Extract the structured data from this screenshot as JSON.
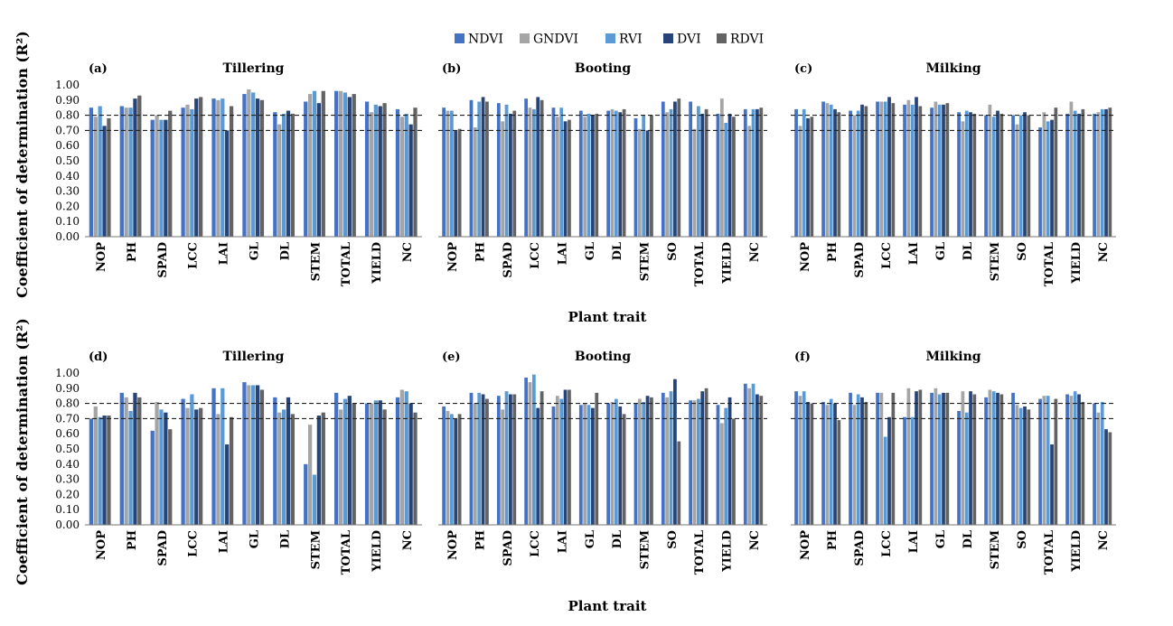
{
  "figure": {
    "ylabel": "Coefficient of determination (R²)",
    "xlabel": "Plant trait"
  },
  "colors": {
    "NDVI": "#4472c4",
    "GNDVI": "#a5a5a5",
    "RVI": "#5b9bd5",
    "DVI": "#264478",
    "RDVI": "#636363"
  },
  "chart_data": [
    {
      "type": "bar",
      "label": "(a)",
      "title": "Tillering",
      "categories": [
        "NOP",
        "PH",
        "SPAD",
        "LCC",
        "LAI",
        "GL",
        "DL",
        "STEM",
        "TOTAL",
        "YIELD",
        "NC"
      ],
      "ylim": [
        0,
        1.0
      ],
      "yticks": [
        "0.00",
        "0.10",
        "0.20",
        "0.30",
        "0.40",
        "0.50",
        "0.60",
        "0.70",
        "0.80",
        "0.90",
        "1.00"
      ],
      "reference_lines": [
        0.7,
        0.8
      ],
      "series": [
        {
          "name": "NDVI",
          "values": [
            0.85,
            0.86,
            0.77,
            0.85,
            0.91,
            0.94,
            0.82,
            0.89,
            0.96,
            0.89,
            0.84
          ]
        },
        {
          "name": "GNDVI",
          "values": [
            0.79,
            0.85,
            0.8,
            0.87,
            0.9,
            0.97,
            0.74,
            0.94,
            0.96,
            0.82,
            0.79
          ]
        },
        {
          "name": "RVI",
          "values": [
            0.86,
            0.85,
            0.77,
            0.84,
            0.91,
            0.95,
            0.81,
            0.96,
            0.95,
            0.87,
            0.81
          ]
        },
        {
          "name": "DVI",
          "values": [
            0.73,
            0.91,
            0.77,
            0.91,
            0.7,
            0.91,
            0.83,
            0.88,
            0.92,
            0.86,
            0.74
          ]
        },
        {
          "name": "RDVI",
          "values": [
            0.78,
            0.93,
            0.83,
            0.92,
            0.86,
            0.9,
            0.81,
            0.96,
            0.94,
            0.88,
            0.85
          ]
        }
      ]
    },
    {
      "type": "bar",
      "label": "(b)",
      "title": "Booting",
      "categories": [
        "NOP",
        "PH",
        "SPAD",
        "LCC",
        "LAI",
        "GL",
        "DL",
        "STEM",
        "SO",
        "TOTAL",
        "YIELD",
        "NC"
      ],
      "ylim": [
        0,
        1.0
      ],
      "yticks": [],
      "reference_lines": [
        0.7,
        0.8
      ],
      "series": [
        {
          "name": "NDVI",
          "values": [
            0.85,
            0.9,
            0.88,
            0.91,
            0.85,
            0.83,
            0.83,
            0.78,
            0.89,
            0.89,
            0.81,
            0.84
          ]
        },
        {
          "name": "GNDVI",
          "values": [
            0.83,
            0.72,
            0.76,
            0.85,
            0.79,
            0.79,
            0.84,
            0.71,
            0.82,
            0.71,
            0.91,
            0.73
          ]
        },
        {
          "name": "RVI",
          "values": [
            0.83,
            0.89,
            0.87,
            0.84,
            0.85,
            0.81,
            0.83,
            0.8,
            0.84,
            0.86,
            0.75,
            0.84
          ]
        },
        {
          "name": "DVI",
          "values": [
            0.7,
            0.92,
            0.81,
            0.92,
            0.76,
            0.8,
            0.82,
            0.7,
            0.89,
            0.81,
            0.81,
            0.84
          ]
        },
        {
          "name": "RDVI",
          "values": [
            0.71,
            0.89,
            0.83,
            0.9,
            0.77,
            0.81,
            0.84,
            0.8,
            0.91,
            0.84,
            0.79,
            0.85
          ]
        }
      ]
    },
    {
      "type": "bar",
      "label": "(c)",
      "title": "Milking",
      "categories": [
        "NOP",
        "PH",
        "SPAD",
        "LCC",
        "LAI",
        "GL",
        "DL",
        "STEM",
        "SO",
        "TOTAL",
        "YIELD",
        "NC"
      ],
      "ylim": [
        0,
        1.0
      ],
      "yticks": [],
      "reference_lines": [
        0.7,
        0.8
      ],
      "series": [
        {
          "name": "NDVI",
          "values": [
            0.84,
            0.89,
            0.83,
            0.89,
            0.87,
            0.85,
            0.82,
            0.8,
            0.8,
            0.72,
            0.81,
            0.81
          ]
        },
        {
          "name": "GNDVI",
          "values": [
            0.73,
            0.88,
            0.8,
            0.89,
            0.9,
            0.89,
            0.76,
            0.87,
            0.74,
            0.82,
            0.89,
            0.82
          ]
        },
        {
          "name": "RVI",
          "values": [
            0.84,
            0.87,
            0.83,
            0.89,
            0.87,
            0.87,
            0.83,
            0.79,
            0.8,
            0.76,
            0.83,
            0.84
          ]
        },
        {
          "name": "DVI",
          "values": [
            0.78,
            0.84,
            0.87,
            0.92,
            0.92,
            0.87,
            0.82,
            0.83,
            0.82,
            0.77,
            0.81,
            0.84
          ]
        },
        {
          "name": "RDVI",
          "values": [
            0.79,
            0.82,
            0.86,
            0.88,
            0.86,
            0.88,
            0.81,
            0.81,
            0.8,
            0.85,
            0.84,
            0.85
          ]
        }
      ]
    },
    {
      "type": "bar",
      "label": "(d)",
      "title": "Tillering",
      "categories": [
        "NOP",
        "PH",
        "SPAD",
        "LCC",
        "LAI",
        "GL",
        "DL",
        "STEM",
        "TOTAL",
        "YIELD",
        "NC"
      ],
      "ylim": [
        0,
        1.0
      ],
      "yticks": [
        "0.00",
        "0.10",
        "0.20",
        "0.30",
        "0.40",
        "0.50",
        "0.60",
        "0.70",
        "0.80",
        "0.90",
        "1.00"
      ],
      "reference_lines": [
        0.7,
        0.8
      ],
      "series": [
        {
          "name": "NDVI",
          "values": [
            0.7,
            0.87,
            0.62,
            0.83,
            0.9,
            0.94,
            0.84,
            0.4,
            0.87,
            0.8,
            0.84
          ]
        },
        {
          "name": "GNDVI",
          "values": [
            0.78,
            0.84,
            0.81,
            0.77,
            0.73,
            0.92,
            0.74,
            0.66,
            0.76,
            0.8,
            0.89
          ]
        },
        {
          "name": "RVI",
          "values": [
            0.71,
            0.75,
            0.76,
            0.86,
            0.9,
            0.92,
            0.76,
            0.33,
            0.83,
            0.82,
            0.88
          ]
        },
        {
          "name": "DVI",
          "values": [
            0.72,
            0.87,
            0.74,
            0.76,
            0.53,
            0.92,
            0.84,
            0.72,
            0.85,
            0.82,
            0.8
          ]
        },
        {
          "name": "RDVI",
          "values": [
            0.72,
            0.84,
            0.63,
            0.77,
            0.71,
            0.89,
            0.73,
            0.74,
            0.8,
            0.76,
            0.74
          ]
        }
      ]
    },
    {
      "type": "bar",
      "label": "(e)",
      "title": "Booting",
      "categories": [
        "NOP",
        "PH",
        "SPAD",
        "LCC",
        "LAI",
        "GL",
        "DL",
        "STEM",
        "SO",
        "TOTAL",
        "YIELD",
        "NC"
      ],
      "ylim": [
        0,
        1.0
      ],
      "yticks": [],
      "reference_lines": [
        0.7,
        0.8
      ],
      "series": [
        {
          "name": "NDVI",
          "values": [
            0.78,
            0.87,
            0.85,
            0.97,
            0.78,
            0.79,
            0.8,
            0.8,
            0.87,
            0.82,
            0.79,
            0.93
          ]
        },
        {
          "name": "GNDVI",
          "values": [
            0.75,
            0.8,
            0.76,
            0.94,
            0.85,
            0.8,
            0.81,
            0.83,
            0.84,
            0.82,
            0.67,
            0.9
          ]
        },
        {
          "name": "RVI",
          "values": [
            0.73,
            0.87,
            0.88,
            0.99,
            0.83,
            0.79,
            0.83,
            0.81,
            0.88,
            0.83,
            0.77,
            0.93
          ]
        },
        {
          "name": "DVI",
          "values": [
            0.7,
            0.86,
            0.86,
            0.77,
            0.89,
            0.77,
            0.78,
            0.85,
            0.96,
            0.88,
            0.84,
            0.86
          ]
        },
        {
          "name": "RDVI",
          "values": [
            0.73,
            0.83,
            0.86,
            0.88,
            0.89,
            0.87,
            0.73,
            0.84,
            0.55,
            0.9,
            0.7,
            0.85
          ]
        }
      ]
    },
    {
      "type": "bar",
      "label": "(f)",
      "title": "Milking",
      "categories": [
        "NOP",
        "PH",
        "SPAD",
        "LCC",
        "LAI",
        "GL",
        "DL",
        "STEM",
        "SO",
        "TOTAL",
        "YIELD",
        "NC"
      ],
      "ylim": [
        0,
        1.0
      ],
      "yticks": [],
      "reference_lines": [
        0.7,
        0.8
      ],
      "series": [
        {
          "name": "NDVI",
          "values": [
            0.88,
            0.81,
            0.87,
            0.87,
            0.71,
            0.87,
            0.75,
            0.84,
            0.87,
            0.83,
            0.86,
            0.8
          ]
        },
        {
          "name": "GNDVI",
          "values": [
            0.85,
            0.79,
            0.79,
            0.87,
            0.9,
            0.9,
            0.88,
            0.89,
            0.79,
            0.85,
            0.85,
            0.74
          ]
        },
        {
          "name": "RVI",
          "values": [
            0.88,
            0.83,
            0.86,
            0.58,
            0.71,
            0.86,
            0.74,
            0.88,
            0.77,
            0.85,
            0.88,
            0.81
          ]
        },
        {
          "name": "DVI",
          "values": [
            0.81,
            0.8,
            0.84,
            0.71,
            0.88,
            0.87,
            0.88,
            0.87,
            0.78,
            0.53,
            0.86,
            0.63
          ]
        },
        {
          "name": "RDVI",
          "values": [
            0.8,
            0.69,
            0.81,
            0.87,
            0.89,
            0.87,
            0.86,
            0.86,
            0.76,
            0.83,
            0.81,
            0.61
          ]
        }
      ]
    }
  ]
}
